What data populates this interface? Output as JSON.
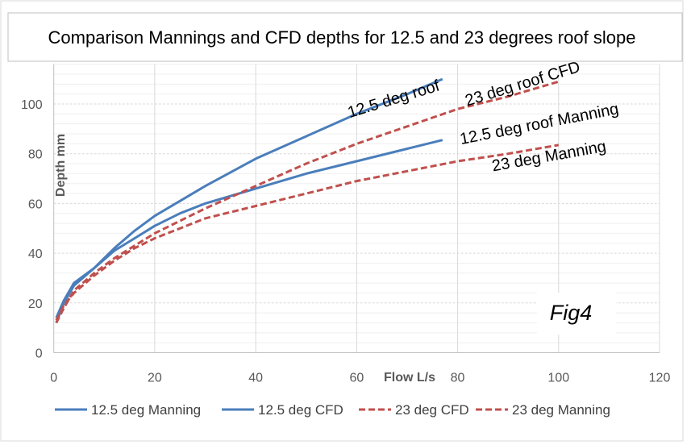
{
  "chart_data": {
    "type": "line",
    "title": "Comparison Mannings and CFD depths for 12.5 and 23 degrees roof slope",
    "xlabel": "Flow L/s",
    "ylabel": "Depth mm",
    "xlim": [
      0,
      120
    ],
    "ylim": [
      0,
      116
    ],
    "xticks": [
      0,
      20,
      40,
      60,
      80,
      100,
      120
    ],
    "yticks": [
      0,
      20,
      40,
      60,
      80,
      100
    ],
    "grid": true,
    "legend_position": "bottom",
    "figure_label": "Fig4",
    "series": [
      {
        "name": "12.5 deg Manning",
        "color": "#4a7ebb",
        "dash": false,
        "label": "12.5 deg roof Manning",
        "x": [
          0.5,
          2,
          4,
          8,
          12,
          16,
          20,
          25,
          30,
          40,
          50,
          60,
          70,
          77
        ],
        "y": [
          14,
          21,
          28,
          34,
          41,
          46,
          51,
          56,
          60,
          66,
          72,
          77,
          82,
          85.5
        ]
      },
      {
        "name": "12.5 deg CFD",
        "color": "#4a7ebb",
        "dash": false,
        "label": "12.5 deg roof",
        "x": [
          0.5,
          2,
          4,
          8,
          12,
          16,
          20,
          25,
          30,
          40,
          50,
          60,
          70,
          77
        ],
        "y": [
          12,
          20,
          27,
          34,
          42,
          49,
          55,
          61,
          67,
          78,
          87,
          96,
          104,
          110
        ]
      },
      {
        "name": "23 deg CFD",
        "color": "#c0504d",
        "dash": true,
        "label": "23 deg roof CFD",
        "x": [
          0.5,
          2,
          4,
          8,
          12,
          16,
          20,
          25,
          30,
          40,
          50,
          60,
          70,
          80,
          90,
          100
        ],
        "y": [
          12,
          18,
          25,
          32,
          38,
          43,
          48,
          53,
          58,
          67,
          76,
          84,
          91,
          98,
          103,
          109
        ]
      },
      {
        "name": "23 deg Manning",
        "color": "#c0504d",
        "dash": true,
        "label": "23 deg Manning",
        "x": [
          0.5,
          2,
          4,
          8,
          12,
          16,
          20,
          25,
          30,
          40,
          50,
          60,
          70,
          80,
          90,
          100
        ],
        "y": [
          13,
          19,
          24,
          31,
          37,
          42,
          46,
          50,
          54,
          59,
          64,
          69,
          73,
          77,
          80,
          83.5
        ]
      }
    ]
  }
}
